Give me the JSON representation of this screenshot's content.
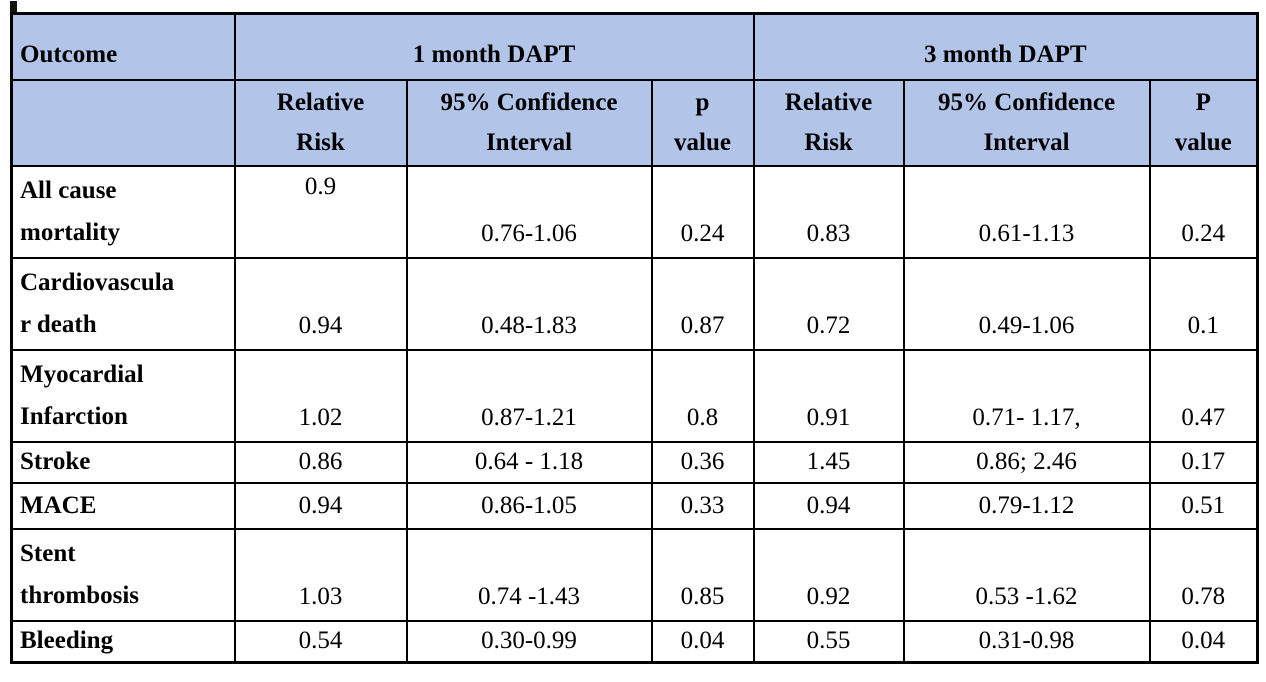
{
  "colors": {
    "header_fill": "#b2c5e9",
    "border": "#000000",
    "text": "#000000",
    "background": "#ffffff"
  },
  "table": {
    "corner_label": "Outcome",
    "col_groups": [
      {
        "label": "1 month DAPT",
        "sub": [
          "Relative\nRisk",
          "95% Confidence\nInterval",
          "p\nvalue"
        ]
      },
      {
        "label": "3 month DAPT",
        "sub": [
          "Relative\nRisk",
          "95% Confidence\nInterval",
          "P\nvalue"
        ]
      }
    ],
    "rows": [
      {
        "outcome": "All cause\nmortality",
        "m1": {
          "rr": "0.9",
          "ci": "0.76-1.06",
          "p": "0.24"
        },
        "m3": {
          "rr": "0.83",
          "ci": "0.61-1.13",
          "p": "0.24"
        }
      },
      {
        "outcome": "Cardiovascula\nr death",
        "m1": {
          "rr": "0.94",
          "ci": "0.48-1.83",
          "p": "0.87"
        },
        "m3": {
          "rr": "0.72",
          "ci": "0.49-1.06",
          "p": "0.1"
        }
      },
      {
        "outcome": "Myocardial\nInfarction",
        "m1": {
          "rr": "1.02",
          "ci": "0.87-1.21",
          "p": "0.8"
        },
        "m3": {
          "rr": "0.91",
          "ci": "0.71- 1.17,",
          "p": "0.47"
        }
      },
      {
        "outcome": "Stroke",
        "m1": {
          "rr": "0.86",
          "ci": "0.64 - 1.18",
          "p": "0.36"
        },
        "m3": {
          "rr": "1.45",
          "ci": "0.86; 2.46",
          "p": "0.17"
        }
      },
      {
        "outcome": "MACE",
        "m1": {
          "rr": "0.94",
          "ci": "0.86-1.05",
          "p": "0.33"
        },
        "m3": {
          "rr": "0.94",
          "ci": "0.79-1.12",
          "p": "0.51"
        }
      },
      {
        "outcome": "Stent\nthrombosis",
        "m1": {
          "rr": "1.03",
          "ci": "0.74 -1.43",
          "p": "0.85"
        },
        "m3": {
          "rr": "0.92",
          "ci": "0.53 -1.62",
          "p": "0.78"
        }
      },
      {
        "outcome": "Bleeding",
        "m1": {
          "rr": "0.54",
          "ci": "0.30-0.99",
          "p": "0.04"
        },
        "m3": {
          "rr": "0.55",
          "ci": "0.31-0.98",
          "p": "0.04"
        }
      }
    ]
  }
}
